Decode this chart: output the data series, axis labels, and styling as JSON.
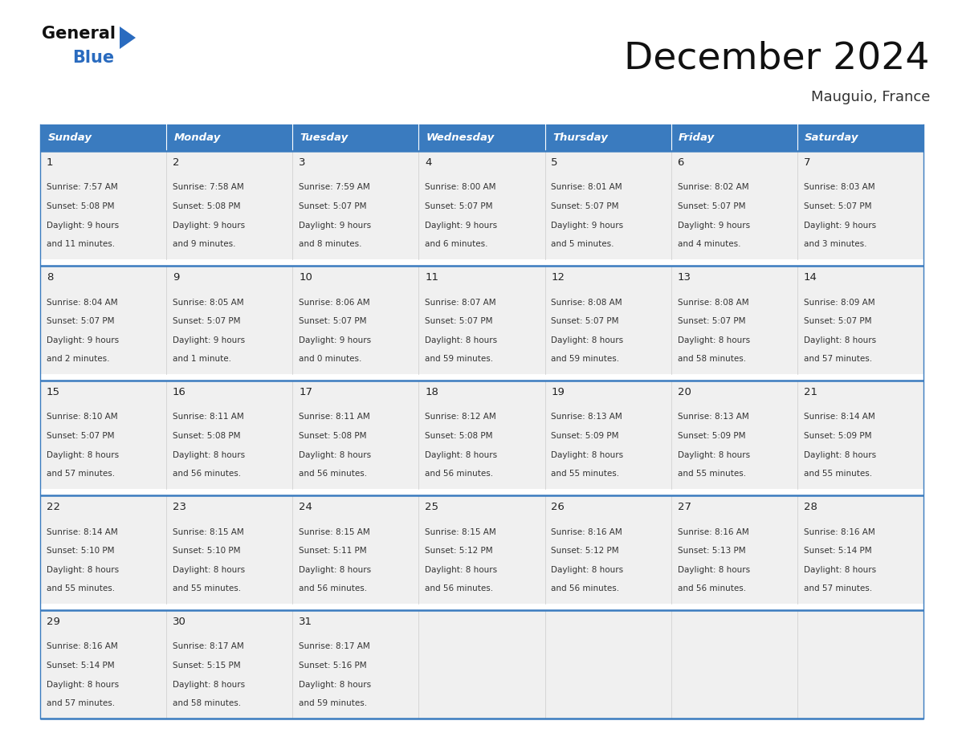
{
  "title": "December 2024",
  "subtitle": "Mauguio, France",
  "days_of_week": [
    "Sunday",
    "Monday",
    "Tuesday",
    "Wednesday",
    "Thursday",
    "Friday",
    "Saturday"
  ],
  "header_bg": "#3a7bbf",
  "header_text": "#ffffff",
  "cell_bg": "#f0f0f0",
  "cell_bg_white": "#ffffff",
  "border_color": "#3a7bbf",
  "separator_color": "#cccccc",
  "text_color": "#333333",
  "day_num_color": "#222222",
  "calendar_data": [
    [
      {
        "day": 1,
        "sunrise": "7:57 AM",
        "sunset": "5:08 PM",
        "daylight": "9 hours and 11 minutes."
      },
      {
        "day": 2,
        "sunrise": "7:58 AM",
        "sunset": "5:08 PM",
        "daylight": "9 hours and 9 minutes."
      },
      {
        "day": 3,
        "sunrise": "7:59 AM",
        "sunset": "5:07 PM",
        "daylight": "9 hours and 8 minutes."
      },
      {
        "day": 4,
        "sunrise": "8:00 AM",
        "sunset": "5:07 PM",
        "daylight": "9 hours and 6 minutes."
      },
      {
        "day": 5,
        "sunrise": "8:01 AM",
        "sunset": "5:07 PM",
        "daylight": "9 hours and 5 minutes."
      },
      {
        "day": 6,
        "sunrise": "8:02 AM",
        "sunset": "5:07 PM",
        "daylight": "9 hours and 4 minutes."
      },
      {
        "day": 7,
        "sunrise": "8:03 AM",
        "sunset": "5:07 PM",
        "daylight": "9 hours and 3 minutes."
      }
    ],
    [
      {
        "day": 8,
        "sunrise": "8:04 AM",
        "sunset": "5:07 PM",
        "daylight": "9 hours and 2 minutes."
      },
      {
        "day": 9,
        "sunrise": "8:05 AM",
        "sunset": "5:07 PM",
        "daylight": "9 hours and 1 minute."
      },
      {
        "day": 10,
        "sunrise": "8:06 AM",
        "sunset": "5:07 PM",
        "daylight": "9 hours and 0 minutes."
      },
      {
        "day": 11,
        "sunrise": "8:07 AM",
        "sunset": "5:07 PM",
        "daylight": "8 hours and 59 minutes."
      },
      {
        "day": 12,
        "sunrise": "8:08 AM",
        "sunset": "5:07 PM",
        "daylight": "8 hours and 59 minutes."
      },
      {
        "day": 13,
        "sunrise": "8:08 AM",
        "sunset": "5:07 PM",
        "daylight": "8 hours and 58 minutes."
      },
      {
        "day": 14,
        "sunrise": "8:09 AM",
        "sunset": "5:07 PM",
        "daylight": "8 hours and 57 minutes."
      }
    ],
    [
      {
        "day": 15,
        "sunrise": "8:10 AM",
        "sunset": "5:07 PM",
        "daylight": "8 hours and 57 minutes."
      },
      {
        "day": 16,
        "sunrise": "8:11 AM",
        "sunset": "5:08 PM",
        "daylight": "8 hours and 56 minutes."
      },
      {
        "day": 17,
        "sunrise": "8:11 AM",
        "sunset": "5:08 PM",
        "daylight": "8 hours and 56 minutes."
      },
      {
        "day": 18,
        "sunrise": "8:12 AM",
        "sunset": "5:08 PM",
        "daylight": "8 hours and 56 minutes."
      },
      {
        "day": 19,
        "sunrise": "8:13 AM",
        "sunset": "5:09 PM",
        "daylight": "8 hours and 55 minutes."
      },
      {
        "day": 20,
        "sunrise": "8:13 AM",
        "sunset": "5:09 PM",
        "daylight": "8 hours and 55 minutes."
      },
      {
        "day": 21,
        "sunrise": "8:14 AM",
        "sunset": "5:09 PM",
        "daylight": "8 hours and 55 minutes."
      }
    ],
    [
      {
        "day": 22,
        "sunrise": "8:14 AM",
        "sunset": "5:10 PM",
        "daylight": "8 hours and 55 minutes."
      },
      {
        "day": 23,
        "sunrise": "8:15 AM",
        "sunset": "5:10 PM",
        "daylight": "8 hours and 55 minutes."
      },
      {
        "day": 24,
        "sunrise": "8:15 AM",
        "sunset": "5:11 PM",
        "daylight": "8 hours and 56 minutes."
      },
      {
        "day": 25,
        "sunrise": "8:15 AM",
        "sunset": "5:12 PM",
        "daylight": "8 hours and 56 minutes."
      },
      {
        "day": 26,
        "sunrise": "8:16 AM",
        "sunset": "5:12 PM",
        "daylight": "8 hours and 56 minutes."
      },
      {
        "day": 27,
        "sunrise": "8:16 AM",
        "sunset": "5:13 PM",
        "daylight": "8 hours and 56 minutes."
      },
      {
        "day": 28,
        "sunrise": "8:16 AM",
        "sunset": "5:14 PM",
        "daylight": "8 hours and 57 minutes."
      }
    ],
    [
      {
        "day": 29,
        "sunrise": "8:16 AM",
        "sunset": "5:14 PM",
        "daylight": "8 hours and 57 minutes."
      },
      {
        "day": 30,
        "sunrise": "8:17 AM",
        "sunset": "5:15 PM",
        "daylight": "8 hours and 58 minutes."
      },
      {
        "day": 31,
        "sunrise": "8:17 AM",
        "sunset": "5:16 PM",
        "daylight": "8 hours and 59 minutes."
      },
      null,
      null,
      null,
      null
    ]
  ],
  "logo_text_general": "General",
  "logo_text_blue": "Blue",
  "logo_blue": "#2a6bbf",
  "logo_black": "#111111"
}
